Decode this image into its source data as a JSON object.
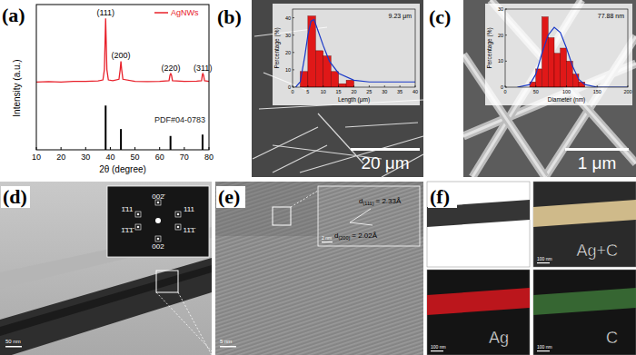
{
  "chart_data": [
    {
      "type": "line",
      "xlabel": "2θ (degree)",
      "ylabel": "Intensity (a.u.)",
      "xlim": [
        10,
        80
      ],
      "xticks": [
        10,
        20,
        30,
        40,
        50,
        60,
        70,
        80
      ],
      "ylim": [
        0,
        105
      ],
      "tick_labels": "x",
      "grid": false,
      "legend": "upper right",
      "series": [
        {
          "name": "AgNWs",
          "type": "line",
          "color": "#e8202a",
          "x": [
            10,
            15,
            20,
            25,
            30,
            35,
            37,
            37.6,
            38.1,
            38.6,
            39.2,
            41,
            43.5,
            44,
            44.3,
            44.6,
            45.1,
            50,
            55,
            60,
            63.8,
            64.2,
            64.5,
            64.8,
            65.2,
            70,
            75,
            77,
            77.3,
            77.5,
            77.8,
            78.2,
            80
          ],
          "values": [
            49,
            49.3,
            49,
            49.5,
            49.4,
            49.8,
            50.5,
            58,
            95,
            58,
            50.5,
            50,
            51,
            58,
            64,
            58,
            51,
            49.5,
            49.3,
            49.5,
            50,
            54,
            55,
            54,
            50,
            49.5,
            49.6,
            50,
            54,
            55,
            54,
            50,
            49.5
          ]
        },
        {
          "name": "PDF#04-0783",
          "type": "bar",
          "color": "#000000",
          "x": [
            38.1,
            44.3,
            64.4,
            77.4
          ],
          "values": [
            32,
            15,
            10,
            11
          ]
        }
      ],
      "annotations": [
        {
          "text": "(111)",
          "x": 38.1
        },
        {
          "text": "(200)",
          "x": 44.3
        },
        {
          "text": "(220)",
          "x": 64.5
        },
        {
          "text": "(311)",
          "x": 77.5
        }
      ]
    },
    {
      "type": "histogram",
      "xlabel": "Length (μm)",
      "ylabel": "Percentage (%)",
      "bins": [
        2.5,
        5,
        7.5,
        10,
        12.5,
        15,
        17.5,
        20
      ],
      "values": [
        9,
        41,
        21,
        18,
        9,
        2,
        4
      ],
      "color": "#e01818",
      "xlim": [
        0,
        40
      ],
      "xticks": [
        0,
        5,
        10,
        15,
        20,
        25,
        30,
        35,
        40
      ],
      "ylim": [
        0,
        45
      ],
      "yticks": [
        0,
        10,
        20,
        30,
        40
      ],
      "annotation": "9.23 μm",
      "fit": {
        "color": "#1838c8",
        "x": [
          1,
          2.5,
          4,
          5,
          6,
          7,
          8,
          10,
          12,
          15,
          20,
          25,
          30,
          40
        ],
        "values": [
          0,
          3,
          18,
          30,
          38,
          39,
          34,
          24,
          15,
          8,
          4,
          3,
          3,
          3
        ]
      }
    },
    {
      "type": "histogram",
      "xlabel": "Diameter (nm)",
      "ylabel": "Percentage (%)",
      "bins": [
        40,
        50,
        60,
        70,
        80,
        90,
        100,
        110,
        120,
        130
      ],
      "values": [
        2,
        7,
        27,
        19,
        13,
        15,
        10,
        5,
        2
      ],
      "color": "#e01818",
      "xlim": [
        0,
        200
      ],
      "xticks": [
        0,
        50,
        100,
        150,
        200
      ],
      "ylim": [
        0,
        30
      ],
      "yticks": [
        0,
        10,
        20,
        30
      ],
      "annotation": "77.88 nm",
      "fit": {
        "color": "#1838c8",
        "x": [
          20,
          40,
          50,
          60,
          70,
          80,
          90,
          100,
          110,
          120,
          130,
          150,
          200
        ],
        "values": [
          0,
          1,
          5,
          13,
          20,
          23,
          21,
          15,
          8,
          3,
          1,
          0,
          0
        ]
      }
    }
  ],
  "panels": {
    "labels": [
      "(a)",
      "(b)",
      "(c)",
      "(d)",
      "(e)",
      "(f)"
    ],
    "b": {
      "scale_bar": "20 μm"
    },
    "c": {
      "scale_bar": "1 μm"
    },
    "d": {
      "scale_bar": "50 nm",
      "saed_labels": [
        "002̄",
        "1̄11",
        "111",
        "1̄1̄1̄",
        "11̄1̄",
        "002"
      ]
    },
    "e": {
      "scale_bar": "5 nm",
      "inset_scale_bar": "2 nm",
      "d_labels": [
        {
          "symbol": "d",
          "subscript": "(111)",
          "value": "= 2.33Å"
        },
        {
          "symbol": "d",
          "subscript": "(200)",
          "value": "= 2.02Å"
        }
      ]
    },
    "f": {
      "map_labels": [
        "Ag+C",
        "Ag",
        "C"
      ],
      "scale_bar": "100 nm"
    }
  }
}
